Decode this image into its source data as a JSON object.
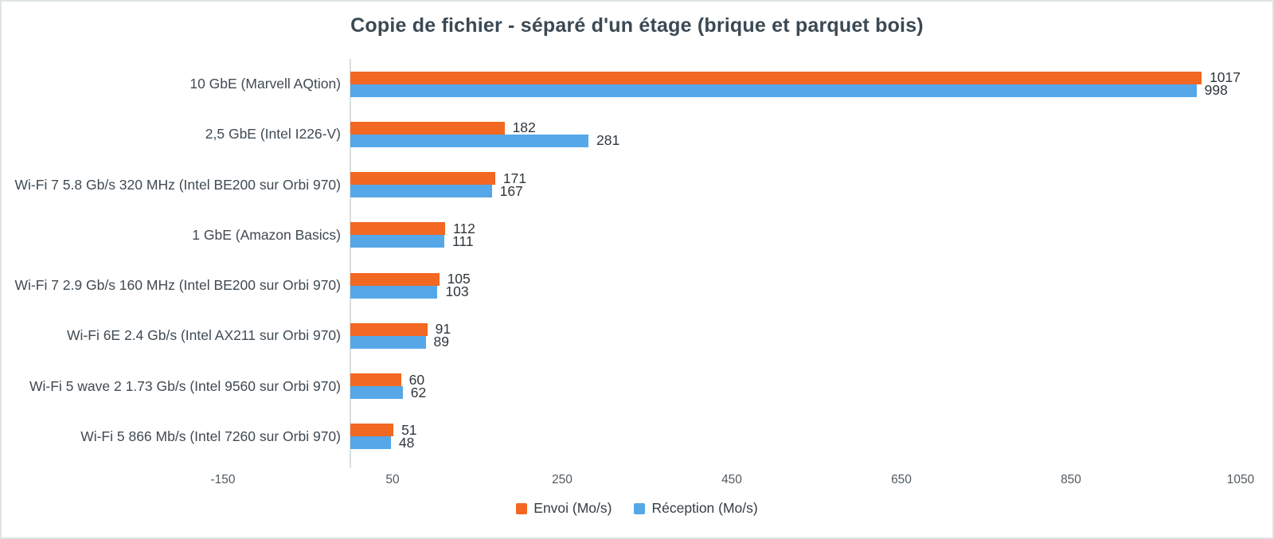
{
  "title": "Copie de fichier - séparé d'un étage (brique et parquet bois)",
  "colors": {
    "envoi": "#f26721",
    "reception": "#56a7e8",
    "title_text": "#3b4953",
    "category_text": "#3f4a52",
    "value_text": "#2f363b",
    "tick_text": "#505a61",
    "axis_line": "#d9dede",
    "border": "#dfe4e4",
    "background": "#ffffff"
  },
  "chart_data": {
    "type": "bar",
    "orientation": "horizontal",
    "title": "Copie de fichier - séparé d'un étage (brique et parquet bois)",
    "xlabel": "",
    "ylabel": "",
    "unit": "Mo/s",
    "xlim": [
      -150,
      1050
    ],
    "xticks": [
      "-150",
      "50",
      "250",
      "450",
      "650",
      "850",
      "1050"
    ],
    "xtick_values": [
      -150,
      50,
      250,
      450,
      650,
      850,
      1050
    ],
    "grid": false,
    "value_labels": true,
    "legend_position": "bottom",
    "categories": [
      "10 GbE (Marvell AQtion)",
      "2,5 GbE (Intel I226-V)",
      "Wi-Fi 7 5.8 Gb/s 320 MHz (Intel BE200 sur Orbi 970)",
      "1 GbE (Amazon Basics)",
      "Wi-Fi 7 2.9 Gb/s 160 MHz (Intel BE200 sur Orbi 970)",
      "Wi-Fi 6E 2.4 Gb/s (Intel AX211 sur Orbi 970)",
      "Wi-Fi 5 wave 2 1.73 Gb/s (Intel 9560 sur Orbi 970)",
      "Wi-Fi 5 866 Mb/s (Intel 7260 sur Orbi 970)"
    ],
    "series": [
      {
        "name": "Envoi (Mo/s)",
        "color": "#f26721",
        "values": [
          1017,
          182,
          171,
          112,
          105,
          91,
          60,
          51
        ]
      },
      {
        "name": "Réception (Mo/s)",
        "color": "#56a7e8",
        "values": [
          998,
          281,
          167,
          111,
          103,
          89,
          62,
          48
        ]
      }
    ]
  }
}
